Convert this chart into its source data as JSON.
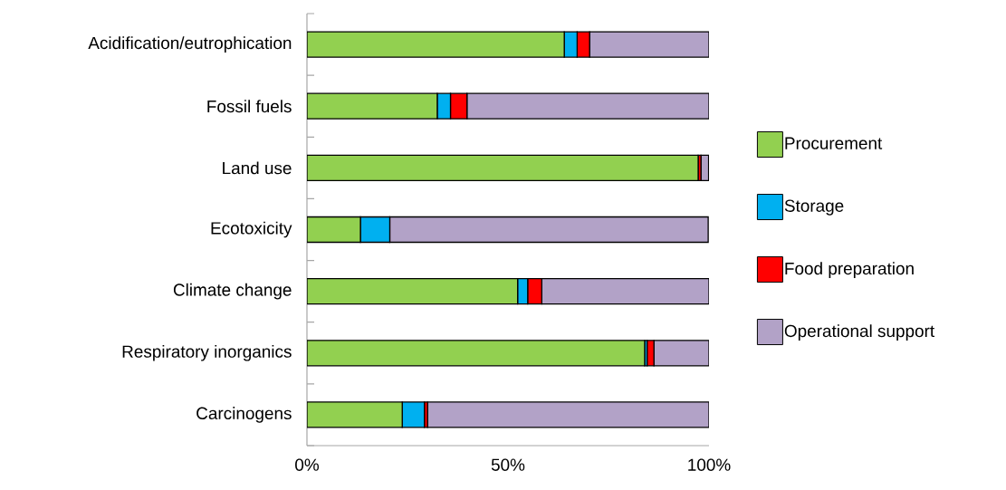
{
  "chart_data": {
    "type": "bar",
    "orientation": "horizontal",
    "stacked": true,
    "categories": [
      "Acidification/eutrophication",
      "Fossil fuels",
      "Land use",
      "Ecotoxicity",
      "Climate change",
      "Respiratory inorganics",
      "Carcinogens"
    ],
    "series": [
      {
        "name": "Procurement",
        "color": "#92d050",
        "values": [
          64.0,
          32.4,
          97.3,
          13.3,
          52.4,
          84.0,
          23.7
        ]
      },
      {
        "name": "Storage",
        "color": "#00b0f0",
        "values": [
          3.2,
          3.3,
          null,
          7.3,
          2.5,
          0.6,
          5.5
        ]
      },
      {
        "name": "Food preparation",
        "color": "#ff0000",
        "values": [
          3.1,
          4.1,
          0.7,
          null,
          3.5,
          1.7,
          0.8
        ]
      },
      {
        "name": "Operational support",
        "color": "#b2a2c7",
        "values": [
          29.7,
          60.2,
          1.9,
          79.2,
          41.6,
          13.7,
          70.0
        ]
      }
    ],
    "xlim": [
      0,
      100
    ],
    "xticks": [
      {
        "value": 0,
        "label": "0%"
      },
      {
        "value": 50,
        "label": "50%"
      },
      {
        "value": 100,
        "label": "100%"
      }
    ],
    "grid": false,
    "legend": "right"
  }
}
